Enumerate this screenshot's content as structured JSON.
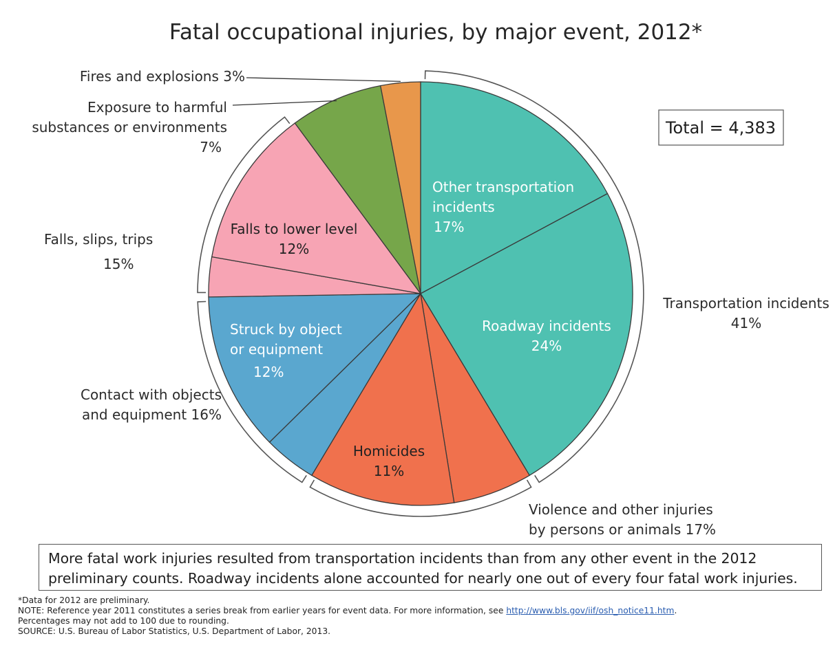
{
  "chart_data": {
    "type": "pie",
    "title": "Fatal occupational injuries, by major event, 2012*",
    "total_label": "Total = 4,383",
    "slices": [
      {
        "name": "Other transportation incidents",
        "label_lines": [
          "Other transportation",
          "incidents"
        ],
        "value": 17,
        "pct_label": "17%",
        "color": "#4fc1b1"
      },
      {
        "name": "Roadway incidents",
        "label_lines": [
          "Roadway incidents"
        ],
        "value": 24,
        "pct_label": "24%",
        "color": "#4fc1b1"
      },
      {
        "name": "Violence (other)",
        "label_lines": [],
        "value": 6,
        "pct_label": "",
        "color": "#f0714d"
      },
      {
        "name": "Homicides",
        "label_lines": [
          "Homicides"
        ],
        "value": 11,
        "pct_label": "11%",
        "color": "#f0714d"
      },
      {
        "name": "Contact (other)",
        "label_lines": [],
        "value": 4,
        "pct_label": "",
        "color": "#5aa7cf"
      },
      {
        "name": "Struck by object or equipment",
        "label_lines": [
          "Struck by object",
          "or equipment"
        ],
        "value": 12,
        "pct_label": "12%",
        "color": "#5aa7cf"
      },
      {
        "name": "Falls (other)",
        "label_lines": [],
        "value": 3,
        "pct_label": "",
        "color": "#f7a4b4"
      },
      {
        "name": "Falls to lower level",
        "label_lines": [
          "Falls to lower level"
        ],
        "value": 12,
        "pct_label": "12%",
        "color": "#f7a4b4"
      },
      {
        "name": "Exposure to harmful substances or environments",
        "label_lines": [],
        "value": 7,
        "pct_label": "",
        "color": "#76a64a"
      },
      {
        "name": "Fires and explosions",
        "label_lines": [],
        "value": 3,
        "pct_label": "",
        "color": "#e8974b"
      }
    ],
    "groups": [
      {
        "name": "Transportation incidents",
        "label_lines": [
          "Transportation incidents",
          "41%"
        ],
        "value": 41,
        "bracket_colors": "#4fc1b1"
      },
      {
        "name": "Violence and other injuries by persons or animals",
        "label_lines": [
          "Violence and other injuries",
          "by persons or animals  17%"
        ],
        "value": 17
      },
      {
        "name": "Contact with objects and equipment",
        "label_lines": [
          "Contact with objects",
          "and equipment 16%"
        ],
        "value": 16
      },
      {
        "name": "Falls, slips, trips",
        "label_lines": [
          "Falls, slips, trips",
          "15%"
        ],
        "value": 15
      },
      {
        "name": "Exposure to harmful substances or environments",
        "label_lines": [
          "Exposure to harmful",
          "substances or environments",
          "7%"
        ],
        "value": 7
      },
      {
        "name": "Fires and explosions",
        "label_lines": [
          "Fires and explosions 3%"
        ],
        "value": 3
      }
    ]
  },
  "note": {
    "lines": [
      "More fatal work injuries resulted from transportation incidents than from any other event in the 2012",
      "preliminary counts.  Roadway incidents alone accounted for nearly one out of every four fatal work injuries."
    ]
  },
  "footnotes": {
    "preliminary": "*Data for 2012 are preliminary.",
    "note_prefix": "NOTE: Reference year 2011 constitutes a series break from earlier years for event data. For more information, see ",
    "link_text": "http://www.bls.gov/iif/osh_notice11.htm",
    "note_suffix": ".",
    "rounding": "Percentages may not add to 100 due to rounding.",
    "source": "SOURCE: U.S. Bureau of Labor Statistics, U.S. Department of Labor, 2013."
  }
}
